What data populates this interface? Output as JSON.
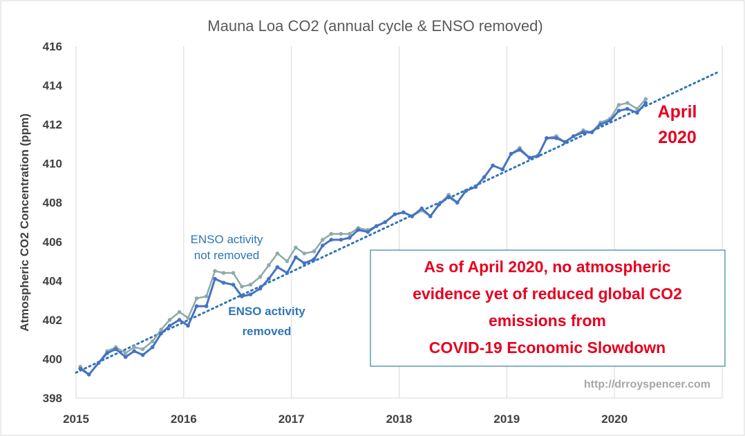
{
  "chart_data": {
    "type": "line",
    "title": "Mauna Loa CO2 (annual cycle & ENSO removed)",
    "ylabel": "Atmospheric CO2 Concentration (ppm)",
    "xlabel": "",
    "xlim": [
      2015,
      2021
    ],
    "ylim": [
      398,
      416
    ],
    "x_ticks": [
      "2015",
      "2016",
      "2017",
      "2018",
      "2019",
      "2020"
    ],
    "y_ticks": [
      "398",
      "400",
      "402",
      "404",
      "406",
      "408",
      "410",
      "412",
      "414",
      "416"
    ],
    "grid": "vertical",
    "x": [
      2015.04,
      2015.12,
      2015.21,
      2015.29,
      2015.37,
      2015.46,
      2015.54,
      2015.62,
      2015.71,
      2015.79,
      2015.87,
      2015.96,
      2016.04,
      2016.12,
      2016.21,
      2016.29,
      2016.37,
      2016.46,
      2016.54,
      2016.62,
      2016.71,
      2016.79,
      2016.87,
      2016.96,
      2017.04,
      2017.12,
      2017.21,
      2017.29,
      2017.37,
      2017.46,
      2017.54,
      2017.62,
      2017.71,
      2017.79,
      2017.87,
      2017.96,
      2018.04,
      2018.12,
      2018.21,
      2018.29,
      2018.37,
      2018.46,
      2018.54,
      2018.62,
      2018.71,
      2018.79,
      2018.87,
      2018.96,
      2019.04,
      2019.12,
      2019.21,
      2019.29,
      2019.37,
      2019.46,
      2019.54,
      2019.62,
      2019.71,
      2019.79,
      2019.87,
      2019.96,
      2020.04,
      2020.12,
      2020.21,
      2020.29
    ],
    "series": [
      {
        "name": "ENSO activity not removed",
        "color": "#8fa9a9",
        "values": [
          399.6,
          399.2,
          399.8,
          400.4,
          400.6,
          400.3,
          400.6,
          400.5,
          400.9,
          401.5,
          402.0,
          402.4,
          402.1,
          403.1,
          403.2,
          404.5,
          404.4,
          404.4,
          403.7,
          403.8,
          404.2,
          404.8,
          405.4,
          405.0,
          405.7,
          405.4,
          405.5,
          406.1,
          406.4,
          406.4,
          406.4,
          406.7,
          406.6,
          406.8,
          407.0,
          407.4,
          407.5,
          407.3,
          407.6,
          407.3,
          407.9,
          408.4,
          408.0,
          408.6,
          408.8,
          409.3,
          409.9,
          409.7,
          410.5,
          410.8,
          410.3,
          410.4,
          411.3,
          411.4,
          411.1,
          411.4,
          411.7,
          411.6,
          412.1,
          412.3,
          413.0,
          413.1,
          412.8,
          413.3
        ]
      },
      {
        "name": "ENSO activity removed",
        "color": "#4472c4",
        "values": [
          399.5,
          399.2,
          399.8,
          400.3,
          400.5,
          400.1,
          400.4,
          400.2,
          400.6,
          401.3,
          401.7,
          402.0,
          401.7,
          402.7,
          402.7,
          404.1,
          403.9,
          403.8,
          403.2,
          403.3,
          403.6,
          404.1,
          404.7,
          404.4,
          405.2,
          404.9,
          405.1,
          405.8,
          406.1,
          406.1,
          406.2,
          406.6,
          406.5,
          406.8,
          407.0,
          407.4,
          407.5,
          407.3,
          407.7,
          407.3,
          407.9,
          408.3,
          408.0,
          408.6,
          408.8,
          409.3,
          409.9,
          409.7,
          410.5,
          410.7,
          410.3,
          410.4,
          411.3,
          411.3,
          411.1,
          411.4,
          411.6,
          411.6,
          412.0,
          412.2,
          412.7,
          412.8,
          412.6,
          413.1
        ]
      }
    ],
    "trend": {
      "name": "",
      "color": "#2e75b6",
      "x": [
        2015.0,
        2020.95
      ],
      "values": [
        399.3,
        414.65
      ]
    },
    "annotations": {
      "enso_not_removed": [
        "ENSO activity",
        "not removed"
      ],
      "enso_removed": [
        "ENSO activity",
        "removed"
      ],
      "april": [
        "April",
        "2020"
      ],
      "box": [
        "As of April 2020, no atmospheric",
        "evidence yet of reduced global CO2",
        "emissions from",
        "COVID-19 Economic Slowdown"
      ],
      "url": "http://drroyspencer.com"
    }
  }
}
